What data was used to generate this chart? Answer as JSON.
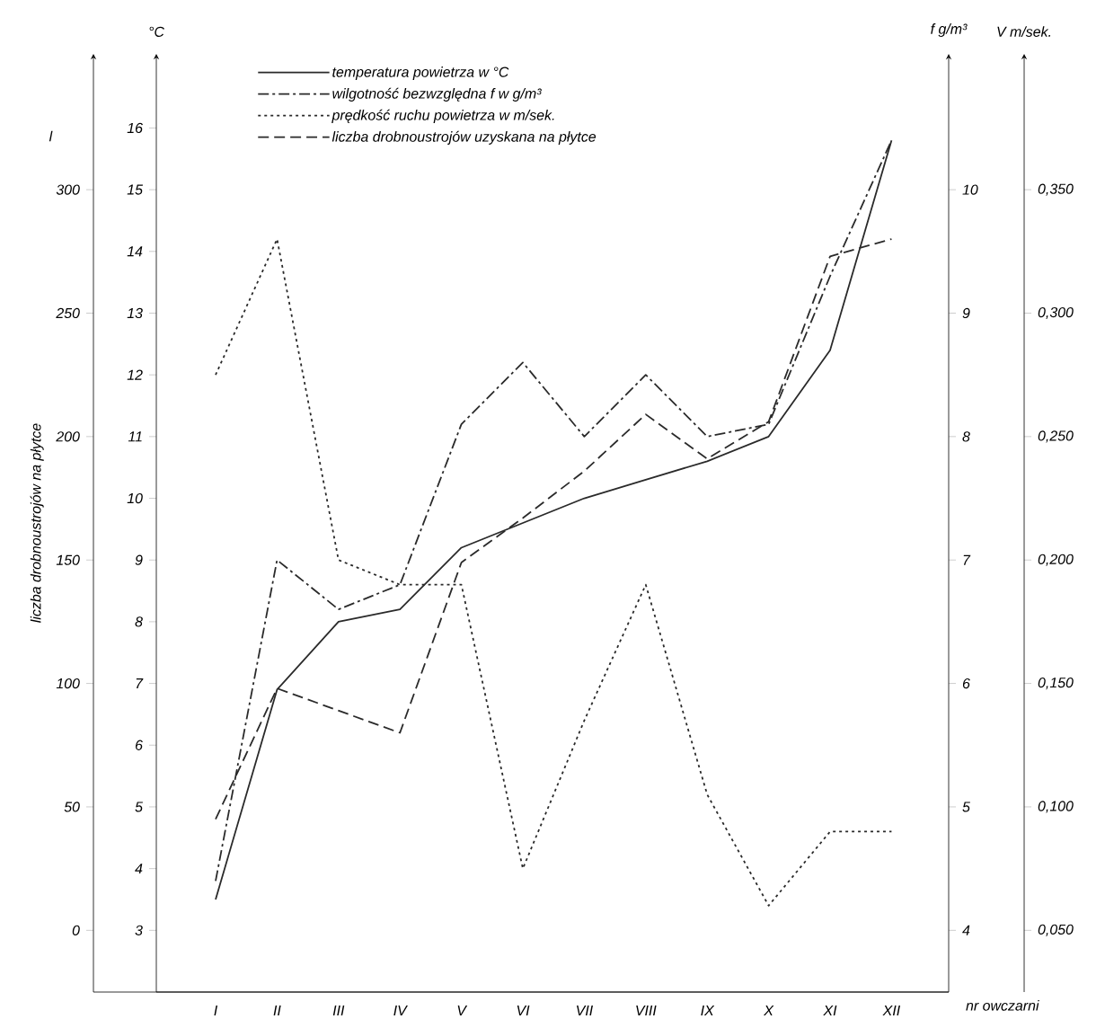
{
  "chart_data": [
    {
      "type": "line",
      "xlabel": "nr owczarni",
      "ylabel": "°C",
      "y2label": "f g/m³",
      "categories": [
        "I",
        "II",
        "III",
        "IV",
        "V",
        "VI",
        "VII",
        "VIII",
        "IX",
        "X",
        "XI",
        "XII"
      ],
      "ylim": [
        2,
        17.2
      ],
      "yticks": [
        3,
        4,
        5,
        6,
        7,
        8,
        9,
        10,
        11,
        12,
        13,
        14,
        15,
        16
      ],
      "y2lim": [
        3.5,
        11.1
      ],
      "y2ticks": [
        4,
        5,
        6,
        7,
        8,
        9,
        10
      ],
      "legend": "top",
      "series": [
        {
          "name": "temperatura powietrza w °C",
          "color": "#2a2a2a",
          "line_style": "solid",
          "values": [
            3.5,
            6.9,
            8.0,
            8.2,
            9.2,
            9.6,
            10.0,
            10.3,
            10.6,
            11.0,
            12.4,
            15.8
          ]
        },
        {
          "name": "wilgotność bezwzględna f w g/m³",
          "color": "#2a2a2a",
          "line_style": "dashdot",
          "axis": "y2",
          "values": [
            4.4,
            7.0,
            6.6,
            6.8,
            8.1,
            8.6,
            8.0,
            8.5,
            8.0,
            8.1,
            9.3,
            10.4
          ]
        }
      ]
    },
    {
      "type": "line",
      "ylabel": "liczba drobnoustrojów na płytce",
      "y2label": "V m/sek.",
      "annotations": [
        "l"
      ],
      "categories": [
        null,
        null,
        null,
        null,
        null,
        null,
        null,
        null,
        null,
        null,
        null,
        null
      ],
      "ylim": [
        -25,
        355
      ],
      "yticks": [
        0,
        50,
        100,
        150,
        200,
        250,
        300
      ],
      "y2lim": [
        0.025,
        0.405
      ],
      "y2ticks": [
        {
          "value": 0.05,
          "label": "0,050"
        },
        {
          "value": 0.1,
          "label": "0,100"
        },
        {
          "value": 0.15,
          "label": "0,150"
        },
        {
          "value": 0.2,
          "label": "0,200"
        },
        {
          "value": 0.25,
          "label": "0,250"
        },
        {
          "value": 0.3,
          "label": "0,300"
        },
        {
          "value": 0.35,
          "label": "0,350"
        }
      ],
      "legend": "top",
      "series": [
        {
          "name": "prędkość ruchu powietrza w m/sek.",
          "color": "#2a2a2a",
          "line_style": "dotted",
          "axis": "y2",
          "values": [
            0.275,
            0.33,
            0.2,
            0.19,
            0.19,
            0.075,
            0.135,
            0.19,
            0.105,
            0.06,
            0.09,
            0.09
          ]
        },
        {
          "name": "liczba drobnoustrojów uzyskana na płytce",
          "color": "#2a2a2a",
          "line_style": "dashed",
          "values": [
            45,
            98,
            89,
            80,
            149,
            167,
            186,
            209,
            191,
            206,
            273,
            280
          ]
        }
      ]
    }
  ]
}
